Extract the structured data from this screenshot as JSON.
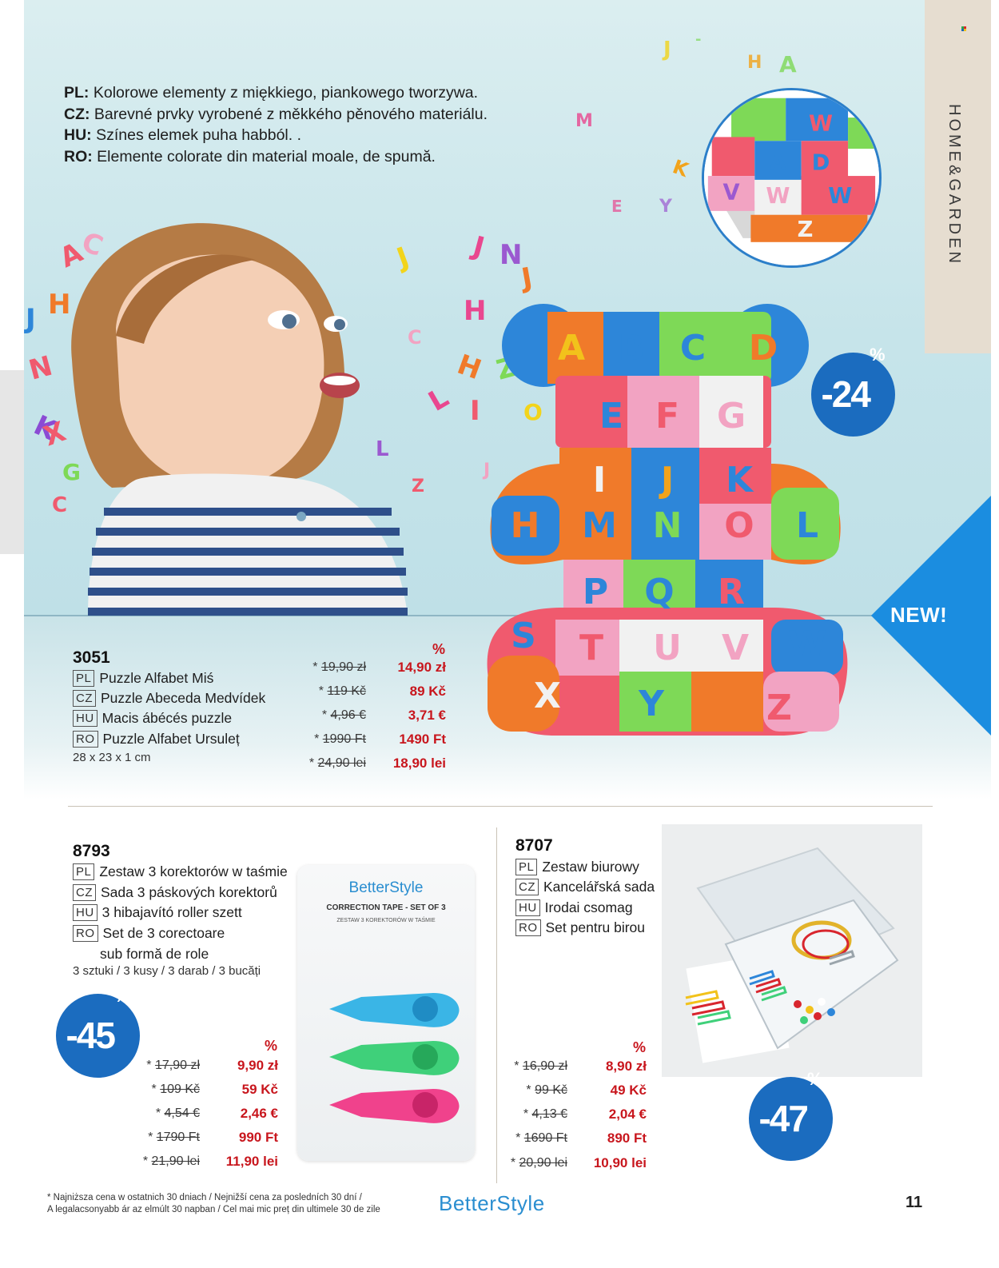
{
  "side_tab": {
    "label": "HOME&GARDEN"
  },
  "description": {
    "lines": [
      {
        "code": "PL:",
        "text": "Kolorowe elementy z miękkiego, piankowego tworzywa."
      },
      {
        "code": "CZ:",
        "text": "Barevné prvky vyrobené z měkkého pěnového materiálu."
      },
      {
        "code": "HU:",
        "text": "Színes elemek puha habból. ."
      },
      {
        "code": "RO:",
        "text": "Elemente colorate din material moale, de spumă."
      }
    ]
  },
  "products": [
    {
      "code": "3051",
      "names": [
        {
          "lang": "PL",
          "name": "Puzzle Alfabet Miś"
        },
        {
          "lang": "CZ",
          "name": "Puzzle Abeceda Medvídek"
        },
        {
          "lang": "HU",
          "name": "Macis ábécés puzzle"
        },
        {
          "lang": "RO",
          "name": "Puzzle Alfabet Ursuleț"
        }
      ],
      "note": "28 x 23 x 1 cm",
      "percent_label": "%",
      "discount": {
        "number": "-24",
        "symbol": "%"
      },
      "badge_new": "NEW!",
      "prices": [
        {
          "old": "19,90 zł",
          "new": "14,90 zł"
        },
        {
          "old": "119 Kč",
          "new": "89 Kč"
        },
        {
          "old": "4,96 €",
          "new": "3,71 €"
        },
        {
          "old": "1990 Ft",
          "new": "1490 Ft"
        },
        {
          "old": "24,90 lei",
          "new": "18,90 lei"
        }
      ]
    },
    {
      "code": "8793",
      "names": [
        {
          "lang": "PL",
          "name": "Zestaw 3 korektorów w taśmie"
        },
        {
          "lang": "CZ",
          "name": "Sada 3 páskových korektorů"
        },
        {
          "lang": "HU",
          "name": "3 hibajavító roller szett"
        },
        {
          "lang": "RO",
          "name": "Set de 3 corectoare"
        }
      ],
      "name_continuation": "sub formă de role",
      "note": "3 sztuki / 3 kusy / 3 darab / 3 bucăți",
      "percent_label": "%",
      "discount": {
        "number": "-45",
        "symbol": "%"
      },
      "package": {
        "brand": "BetterStyle",
        "title": "CORRECTION TAPE - SET OF 3",
        "subtitle": "ZESTAW 3 KOREKTORÓW W TAŚMIE"
      },
      "prices": [
        {
          "old": "17,90 zł",
          "new": "9,90 zł"
        },
        {
          "old": "109 Kč",
          "new": "59 Kč"
        },
        {
          "old": "4,54 €",
          "new": "2,46 €"
        },
        {
          "old": "1790 Ft",
          "new": "990 Ft"
        },
        {
          "old": "21,90 lei",
          "new": "11,90 lei"
        }
      ]
    },
    {
      "code": "8707",
      "names": [
        {
          "lang": "PL",
          "name": "Zestaw biurowy"
        },
        {
          "lang": "CZ",
          "name": "Kancelářská sada"
        },
        {
          "lang": "HU",
          "name": "Irodai csomag"
        },
        {
          "lang": "RO",
          "name": "Set pentru birou"
        }
      ],
      "percent_label": "%",
      "discount": {
        "number": "-47",
        "symbol": "%"
      },
      "prices": [
        {
          "old": "16,90 zł",
          "new": "8,90 zł"
        },
        {
          "old": "99 Kč",
          "new": "49 Kč"
        },
        {
          "old": "4,13 €",
          "new": "2,04 €"
        },
        {
          "old": "1690 Ft",
          "new": "890 Ft"
        },
        {
          "old": "20,90 lei",
          "new": "10,90 lei"
        }
      ]
    }
  ],
  "footer": {
    "footnote_line1": "* Najniższa cena w ostatnich 30 dniach / Nejnižší cena za posledních 30 dní /",
    "footnote_line2": "A legalacsonyabb ár az elmúlt 30 napban / Cel mai mic preț din ultimele 30 de zile",
    "brand": "BetterStyle",
    "page_number": "11"
  },
  "colors": {
    "accent_blue": "#1b6cbf",
    "price_red": "#c8161d",
    "side_tab_beige": "#e6ddd0"
  }
}
